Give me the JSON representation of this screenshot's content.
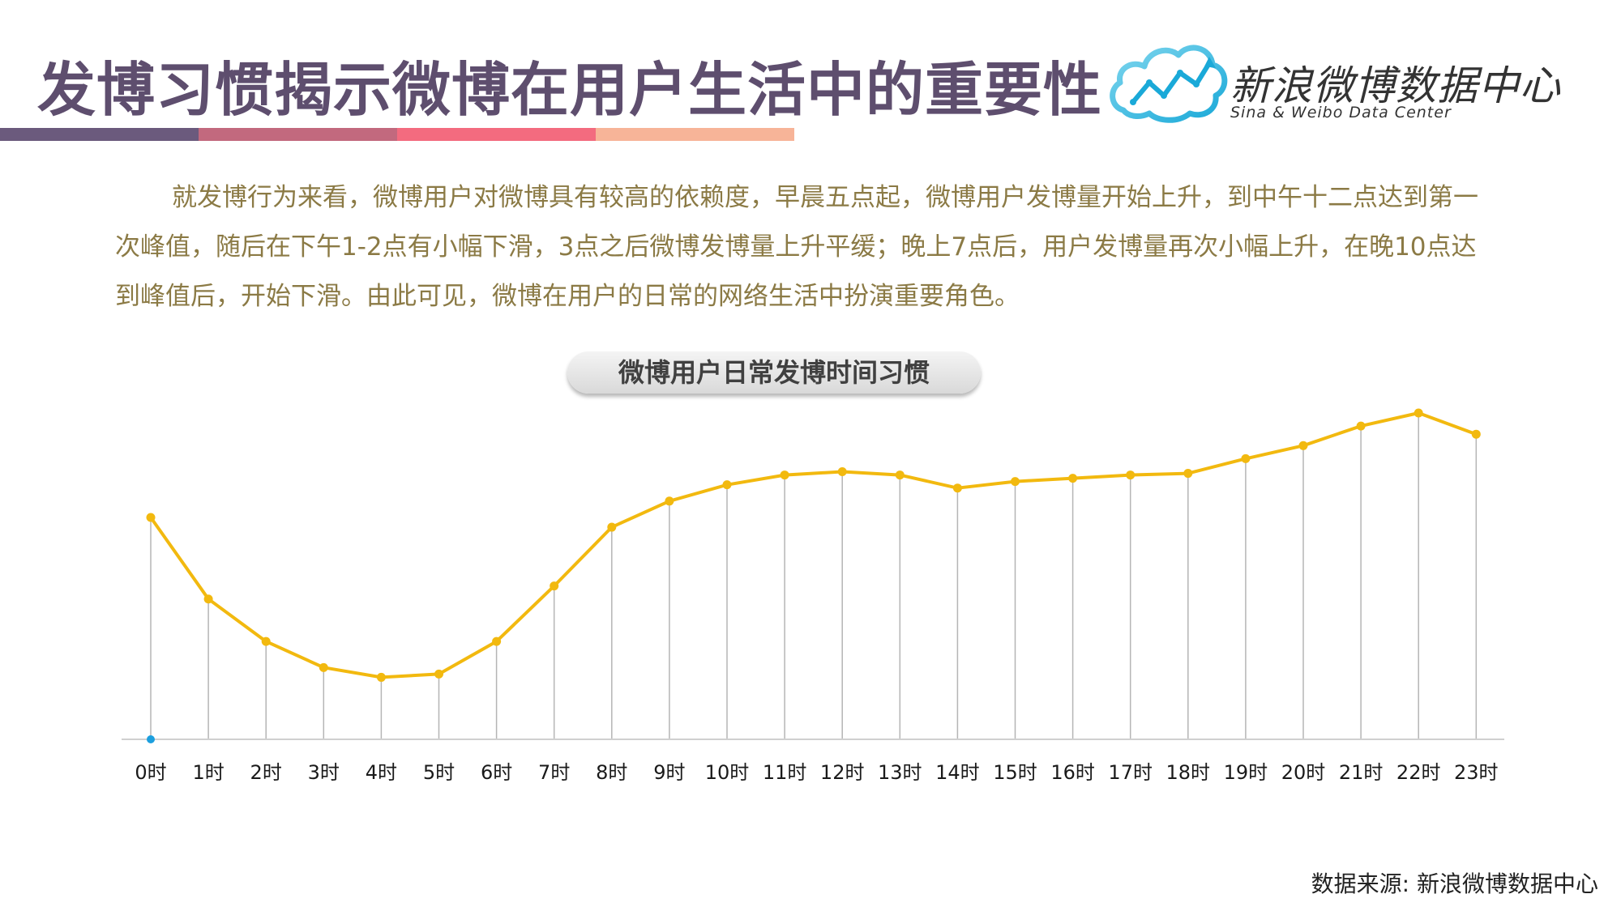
{
  "header": {
    "title": "发博习惯揭示微博在用户生活中的重要性",
    "accent_colors": [
      "#6b5a7d",
      "#c2697e",
      "#f36b7f",
      "#f7b498"
    ]
  },
  "logo": {
    "icon": "cloud-chart-logo-icon",
    "name_cn": "新浪微博数据中心",
    "name_en": "Sina & Weibo Data Center"
  },
  "description": "就发博行为来看，微博用户对微博具有较高的依赖度，早晨五点起，微博用户发博量开始上升，到中午十二点达到第一次峰值，随后在下午1-2点有小幅下滑，3点之后微博发博量上升平缓；晚上7点后，用户发博量再次小幅上升，在晚10点达到峰值后，开始下滑。由此可见，微博在用户的日常的网络生活中扮演重要角色。",
  "footer": {
    "source": "数据来源: 新浪微博数据中心"
  },
  "chart_data": {
    "type": "line",
    "title": "微博用户日常发博时间习惯",
    "categories": [
      "0时",
      "1时",
      "2时",
      "3时",
      "4时",
      "5时",
      "6时",
      "7时",
      "8时",
      "9时",
      "10时",
      "11时",
      "12时",
      "13时",
      "14时",
      "15时",
      "16时",
      "17时",
      "18时",
      "19时",
      "20时",
      "21时",
      "22时",
      "23时"
    ],
    "values": [
      68,
      43,
      30,
      22,
      19,
      20,
      30,
      47,
      65,
      73,
      78,
      81,
      82,
      81,
      77,
      79,
      80,
      81,
      81.5,
      86,
      90,
      96,
      100,
      93.5
    ],
    "ylim": [
      0,
      100
    ],
    "xlabel": "",
    "ylabel": "",
    "grid": false,
    "drop_lines": true,
    "line_color": "#f2b90f",
    "drop_line_color": "#b5b5b5",
    "axis_color": "#d0d0d0",
    "origin_marker_color": "#1c9fde"
  }
}
